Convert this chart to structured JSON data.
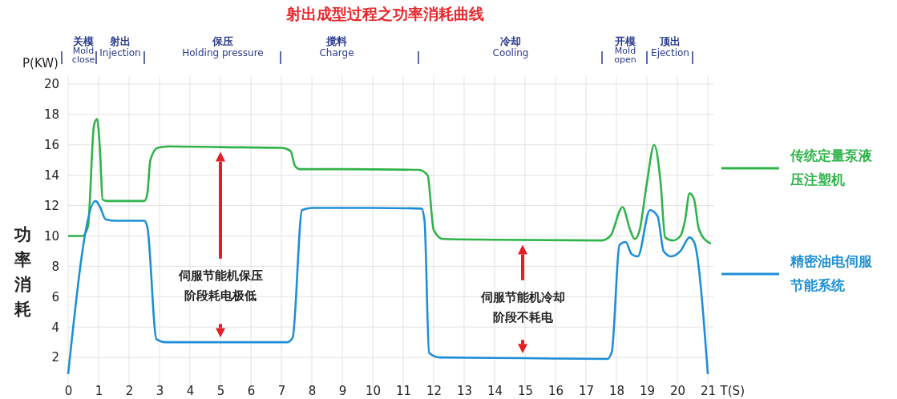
{
  "chart_data": {
    "type": "line",
    "title": "射出成型过程之功率消耗曲线",
    "xlabel": "T(S)",
    "ylabel": "功率消耗",
    "xlim": [
      0,
      21.2
    ],
    "ylim": [
      0,
      20.5
    ],
    "xticks": [
      0,
      1,
      2,
      3,
      4,
      5,
      6,
      7,
      8,
      9,
      10,
      11,
      12,
      13,
      14,
      15,
      16,
      17,
      18,
      19,
      20,
      21
    ],
    "yticks": [
      2,
      4,
      6,
      8,
      10,
      12,
      14,
      16,
      18,
      20
    ],
    "grid": true,
    "legend": "right",
    "line_style": "solid",
    "marker": "none",
    "series": [
      {
        "name": "传统定量泵液压注塑机",
        "color": "#2fb34a",
        "x": [
          0,
          0.47,
          0.65,
          0.85,
          0.95,
          1.05,
          1.13,
          1.3,
          2.0,
          2.5,
          2.6,
          2.7,
          2.94,
          3.3,
          5,
          7.0,
          7.3,
          7.45,
          7.6,
          9,
          11.5,
          11.8,
          12.0,
          12.3,
          14,
          17.5,
          17.8,
          18.2,
          18.45,
          18.6,
          18.75,
          19.0,
          19.24,
          19.45,
          19.6,
          19.85,
          20.1,
          20.25,
          20.4,
          20.55,
          20.7,
          21.0,
          21.1
        ],
        "values": [
          10,
          10,
          10.6,
          17.3,
          17.7,
          15.5,
          12.4,
          12.3,
          12.3,
          12.3,
          12.8,
          15.0,
          15.8,
          15.9,
          15.85,
          15.8,
          15.6,
          14.6,
          14.4,
          14.4,
          14.35,
          14.0,
          10.4,
          9.8,
          9.75,
          9.7,
          10.0,
          11.9,
          10.4,
          9.8,
          10.3,
          13.5,
          16.0,
          13.5,
          9.9,
          9.7,
          10.0,
          11.0,
          12.8,
          12.4,
          10.5,
          9.6,
          9.5
        ]
      },
      {
        "name": "精密油电伺服节能系统",
        "color": "#1e8fd6",
        "x": [
          0,
          0.9,
          1.05,
          1.23,
          1.6,
          2.5,
          2.6,
          2.9,
          3.2,
          5,
          7.2,
          7.37,
          7.68,
          8.0,
          10,
          11.6,
          11.7,
          11.85,
          12.2,
          15,
          17.7,
          17.85,
          18.1,
          18.3,
          18.5,
          18.7,
          19.1,
          19.35,
          19.55,
          19.8,
          20.1,
          20.4,
          20.55,
          21.0
        ],
        "values": [
          0.9,
          12.3,
          11.9,
          11.1,
          11.0,
          11.0,
          10.6,
          3.2,
          3.0,
          3.0,
          3.0,
          3.3,
          11.7,
          11.85,
          11.85,
          11.8,
          11.0,
          2.3,
          2.0,
          1.95,
          1.9,
          2.4,
          9.4,
          9.6,
          8.8,
          8.65,
          11.7,
          11.3,
          9.0,
          8.65,
          9.0,
          9.9,
          9.6,
          0.9
        ]
      }
    ],
    "annotations": [
      "P(KW)",
      "伺服节能机保压阶段耗电极低",
      "伺服节能机冷却阶段不耗电",
      "关模\nMold\nclose",
      "射出\nInjection",
      "保压\nHolding pressure",
      "搅料\nCharge",
      "冷却\nCooling",
      "开模\nMold\nopen",
      "顶出\nEjection"
    ]
  }
}
